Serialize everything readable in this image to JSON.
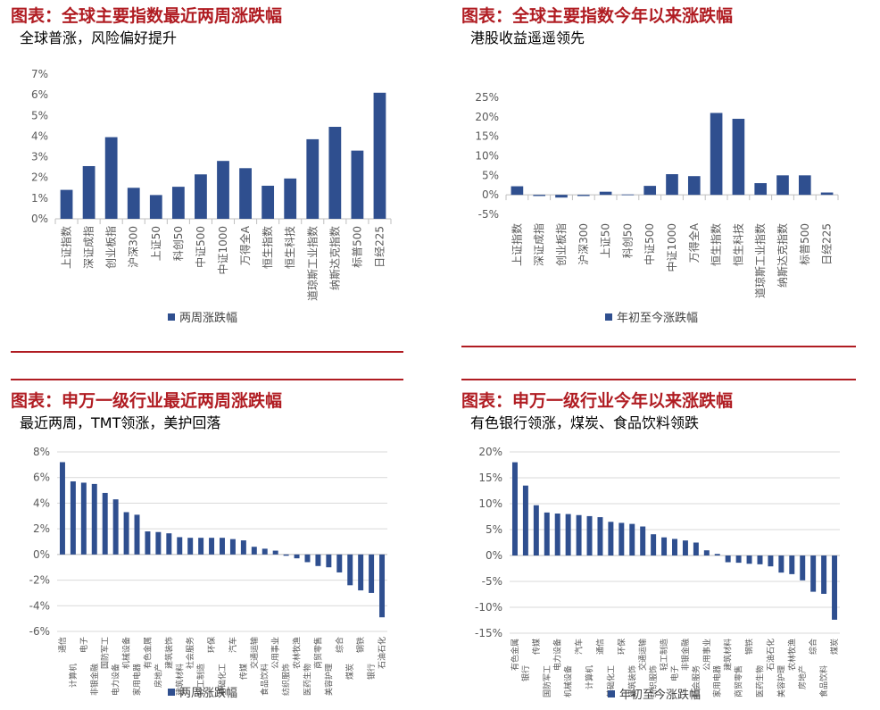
{
  "panels": [
    {
      "title": "图表：全球主要指数最近两周涨跌幅",
      "subtitle": "全球普涨，风险偏好提升"
    },
    {
      "title": "图表：全球主要指数今年以来涨跌幅",
      "subtitle": "港股收益遥遥领先"
    },
    {
      "title": "图表：申万一级行业最近两周涨跌幅",
      "subtitle": "最近两周，TMT领涨，美护回落"
    },
    {
      "title": "图表：申万一级行业今年以来涨跌幅",
      "subtitle": "有色银行领涨，煤炭、食品饮料领跌"
    }
  ],
  "colors": {
    "bar": "#2f4f8f",
    "title": "#b01c22",
    "grid": "#d9d9d9"
  },
  "chart_data": [
    {
      "type": "bar",
      "title": "",
      "categories": [
        "上证指数",
        "深证成指",
        "创业板指",
        "沪深300",
        "上证50",
        "科创50",
        "中证500",
        "中证1000",
        "万得全A",
        "恒生指数",
        "恒生科技",
        "道琼斯工业指数",
        "纳斯达克指数",
        "标普500",
        "日经225"
      ],
      "series": [
        {
          "name": "两周涨跌幅",
          "values": [
            1.4,
            2.55,
            3.95,
            1.5,
            1.15,
            1.55,
            2.15,
            2.8,
            2.45,
            1.6,
            1.95,
            3.85,
            4.45,
            3.3,
            6.1
          ]
        }
      ],
      "ylim": [
        0,
        7
      ],
      "yticks": [
        0,
        1,
        2,
        3,
        4,
        5,
        6,
        7
      ],
      "ytick_labels": [
        "0%",
        "1%",
        "2%",
        "3%",
        "4%",
        "5%",
        "6%",
        "7%"
      ],
      "grid": false,
      "legend": "bottom"
    },
    {
      "type": "bar",
      "title": "",
      "categories": [
        "上证指数",
        "深证成指",
        "创业板指",
        "沪深300",
        "上证50",
        "科创50",
        "中证500",
        "中证1000",
        "万得全A",
        "恒生指数",
        "恒生科技",
        "道琼斯工业指数",
        "纳斯达克指数",
        "标普500",
        "日经225"
      ],
      "series": [
        {
          "name": "年初至今涨跌幅",
          "values": [
            2.2,
            -0.3,
            -0.7,
            -0.3,
            0.8,
            0.1,
            2.3,
            5.3,
            4.8,
            21.0,
            19.5,
            3.0,
            5.0,
            5.0,
            0.6
          ]
        }
      ],
      "ylim": [
        -5,
        25
      ],
      "yticks": [
        -5,
        0,
        5,
        10,
        15,
        20,
        25
      ],
      "ytick_labels": [
        "-5%",
        "0%",
        "5%",
        "10%",
        "15%",
        "20%",
        "25%"
      ],
      "grid": false,
      "legend": "bottom"
    },
    {
      "type": "bar",
      "title": "",
      "categories": [
        "通信",
        "计算机",
        "电子",
        "非银金融",
        "国防军工",
        "电力设备",
        "机械设备",
        "家用电器",
        "有色金属",
        "房地产",
        "建筑装饰",
        "建筑材料",
        "社会服务",
        "轻工制造",
        "环保",
        "基础化工",
        "汽车",
        "传媒",
        "交通运输",
        "食品饮料",
        "公用事业",
        "纺织服饰",
        "农林牧渔",
        "医药生物",
        "商贸零售",
        "美容护理",
        "综合",
        "煤炭",
        "钢铁",
        "银行",
        "石油石化"
      ],
      "category_rows": [
        [
          "通信",
          "电子",
          "国防军工",
          "机械设备",
          "有色金属",
          "建筑装饰",
          "社会服务",
          "环保",
          "汽车",
          "交通运输",
          "公用事业",
          "农林牧渔",
          "商贸零售",
          "综合",
          "钢铁"
        ],
        [
          "计算机",
          "非银金融",
          "电力设备",
          "家用电器",
          "房地产",
          "建筑材料",
          "轻工制造",
          "基础化工",
          "传媒",
          "食品饮料",
          "纺织服饰",
          "医药生物",
          "美容护理",
          "煤炭",
          "银行",
          "石油石化"
        ]
      ],
      "series": [
        {
          "name": "两周涨跌幅",
          "values": [
            7.2,
            5.7,
            5.6,
            5.5,
            4.8,
            4.3,
            3.3,
            3.1,
            1.8,
            1.75,
            1.65,
            1.35,
            1.3,
            1.3,
            1.3,
            1.3,
            1.2,
            1.1,
            0.6,
            0.45,
            0.3,
            -0.1,
            -0.3,
            -0.6,
            -0.9,
            -1.0,
            -1.4,
            -2.4,
            -2.8,
            -3.0,
            -4.9
          ]
        }
      ],
      "ylim": [
        -6,
        8
      ],
      "yticks": [
        -6,
        -4,
        -2,
        0,
        2,
        4,
        6,
        8
      ],
      "ytick_labels": [
        "-6%",
        "-4%",
        "-2%",
        "0%",
        "2%",
        "4%",
        "6%",
        "8%"
      ],
      "grid": true,
      "legend": "bottom"
    },
    {
      "type": "bar",
      "title": "",
      "categories": [
        "有色金属",
        "银行",
        "传媒",
        "国防军工",
        "电力设备",
        "机械设备",
        "汽车",
        "计算机",
        "通信",
        "基础化工",
        "环保",
        "建筑装饰",
        "交通运输",
        "纺织服饰",
        "轻工制造",
        "电子",
        "非银金融",
        "社会服务",
        "公用事业",
        "家用电器",
        "建筑材料",
        "商贸零售",
        "钢铁",
        "医药生物",
        "石油石化",
        "美容护理",
        "农林牧渔",
        "房地产",
        "综合",
        "食品饮料",
        "煤炭"
      ],
      "category_rows": [
        [
          "有色金属",
          "传媒",
          "电力设备",
          "汽车",
          "通信",
          "环保",
          "交通运输",
          "轻工制造",
          "非银金融",
          "公用事业",
          "建筑材料",
          "钢铁",
          "石油石化",
          "农林牧渔",
          "综合",
          "煤炭"
        ],
        [
          "银行",
          "国防军工",
          "机械设备",
          "计算机",
          "基础化工",
          "建筑装饰",
          "纺织服饰",
          "电子",
          "社会服务",
          "家用电器",
          "商贸零售",
          "医药生物",
          "美容护理",
          "房地产",
          "食品饮料"
        ]
      ],
      "series": [
        {
          "name": "年初至今涨跌幅",
          "values": [
            18.0,
            13.5,
            9.7,
            8.3,
            8.1,
            8.0,
            7.8,
            7.6,
            7.4,
            6.5,
            6.3,
            6.1,
            5.6,
            4.1,
            3.5,
            3.2,
            2.9,
            2.5,
            1.0,
            0.3,
            -1.3,
            -1.4,
            -1.6,
            -1.7,
            -2.1,
            -3.3,
            -3.6,
            -4.8,
            -7.0,
            -7.4,
            -12.4
          ]
        }
      ],
      "ylim": [
        -15,
        20
      ],
      "yticks": [
        -15,
        -10,
        -5,
        0,
        5,
        10,
        15,
        20
      ],
      "ytick_labels": [
        "-15%",
        "-10%",
        "-5%",
        "0%",
        "5%",
        "10%",
        "15%",
        "20%"
      ],
      "grid": true,
      "legend": "bottom"
    }
  ]
}
